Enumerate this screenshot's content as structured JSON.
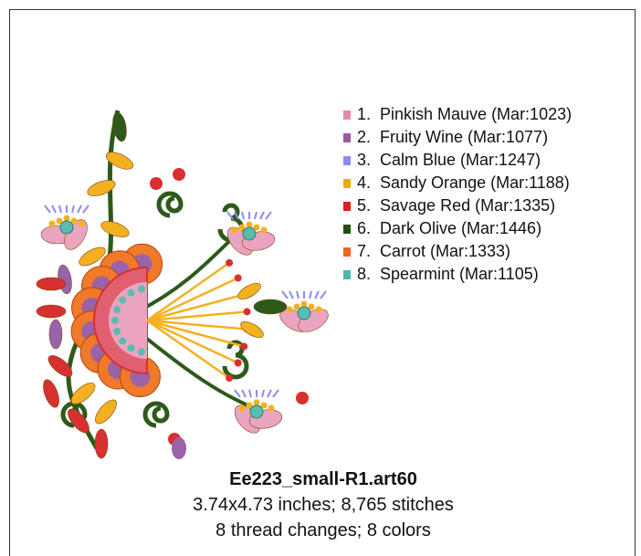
{
  "legend": [
    {
      "label": "1.  Pinkish Mauve (Mar:1023)",
      "color": "#e48aa8"
    },
    {
      "label": "2.  Fruity Wine (Mar:1077)",
      "color": "#9a5a9e"
    },
    {
      "label": "3.  Calm Blue (Mar:1247)",
      "color": "#8c8cf0"
    },
    {
      "label": "4.  Sandy Orange (Mar:1188)",
      "color": "#f5a800"
    },
    {
      "label": "5.  Savage Red (Mar:1335)",
      "color": "#d82020"
    },
    {
      "label": "6.  Dark Olive (Mar:1446)",
      "color": "#1e5010"
    },
    {
      "label": "7.  Carrot (Mar:1333)",
      "color": "#f06420"
    },
    {
      "label": "8.  Spearmint (Mar:1105)",
      "color": "#50b8a8"
    }
  ],
  "footer": {
    "title": "Ee223_small-R1.art60",
    "lines": [
      "3.74x4.73 inches; 8,765 stitches",
      "8 thread changes; 8 colors"
    ]
  }
}
